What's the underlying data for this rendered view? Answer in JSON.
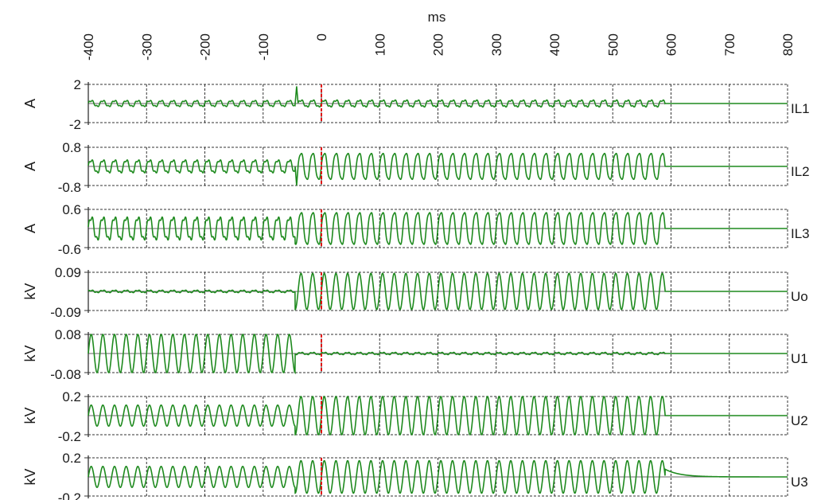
{
  "chart_data": {
    "type": "line",
    "xlabel": "ms",
    "xlim": [
      -400,
      800
    ],
    "xticks": [
      -400,
      -300,
      -200,
      -100,
      0,
      100,
      200,
      300,
      400,
      500,
      600,
      700,
      800
    ],
    "xtick_labels": [
      "-400",
      "-300",
      "-200",
      "-100",
      "0",
      "100",
      "200",
      "300",
      "400",
      "500",
      "600",
      "700",
      "800"
    ],
    "grid": true,
    "line_color": "#1e8a1e",
    "marker_color": "#e01010",
    "marker_x": 0,
    "frequency_hz": 50,
    "series": [
      {
        "name": "IL1",
        "unit": "A",
        "ylim": [
          -2,
          2
        ],
        "ytick_labels": [
          "2",
          "-2"
        ],
        "segments": [
          {
            "x": [
              -400,
              -45
            ],
            "amplitude": 0.35,
            "harmonic": 0.3
          },
          {
            "x": [
              -45,
              -40
            ],
            "spike": 1.8
          },
          {
            "x": [
              -40,
              590
            ],
            "amplitude": 0.4,
            "harmonic": 0.3
          },
          {
            "x": [
              590,
              800
            ],
            "amplitude": 0
          }
        ]
      },
      {
        "name": "IL2",
        "unit": "A",
        "ylim": [
          -0.8,
          0.8
        ],
        "ytick_labels": [
          "0.8",
          "-0.8"
        ],
        "segments": [
          {
            "x": [
              -400,
              -45
            ],
            "amplitude": 0.3,
            "harmonic": 0.25
          },
          {
            "x": [
              -45,
              -40
            ],
            "spike": -0.8
          },
          {
            "x": [
              -40,
              590
            ],
            "amplitude": 0.6,
            "harmonic": 0.1
          },
          {
            "x": [
              590,
              800
            ],
            "amplitude": 0
          }
        ]
      },
      {
        "name": "IL3",
        "unit": "A",
        "ylim": [
          -0.6,
          0.6
        ],
        "ytick_labels": [
          "0.6",
          "-0.6"
        ],
        "segments": [
          {
            "x": [
              -400,
              -45
            ],
            "amplitude": 0.4,
            "harmonic": 0.25
          },
          {
            "x": [
              -45,
              590
            ],
            "amplitude": 0.55,
            "harmonic": 0.1
          },
          {
            "x": [
              590,
              800
            ],
            "amplitude": 0
          }
        ]
      },
      {
        "name": "Uo",
        "unit": "kV",
        "ylim": [
          -0.09,
          0.09
        ],
        "ytick_labels": [
          "0.09",
          "-0.09"
        ],
        "segments": [
          {
            "x": [
              -400,
              -45
            ],
            "amplitude": 0.006,
            "harmonic": 0.5
          },
          {
            "x": [
              -45,
              590
            ],
            "amplitude": 0.085,
            "harmonic": 0
          },
          {
            "x": [
              590,
              800
            ],
            "amplitude": 0
          }
        ]
      },
      {
        "name": "U1",
        "unit": "kV",
        "ylim": [
          -0.08,
          0.08
        ],
        "ytick_labels": [
          "0.08",
          "-0.08"
        ],
        "segments": [
          {
            "x": [
              -400,
              -45
            ],
            "amplitude": 0.08,
            "harmonic": 0
          },
          {
            "x": [
              -45,
              590
            ],
            "amplitude": 0.005,
            "harmonic": 0.5
          },
          {
            "x": [
              590,
              800
            ],
            "amplitude": 0
          }
        ]
      },
      {
        "name": "U2",
        "unit": "kV",
        "ylim": [
          -0.2,
          0.2
        ],
        "ytick_labels": [
          "0.2",
          "-0.2"
        ],
        "segments": [
          {
            "x": [
              -400,
              -45
            ],
            "amplitude": 0.11,
            "harmonic": 0
          },
          {
            "x": [
              -45,
              590
            ],
            "amplitude": 0.2,
            "harmonic": 0
          },
          {
            "x": [
              590,
              800
            ],
            "amplitude": 0
          }
        ]
      },
      {
        "name": "U3",
        "unit": "kV",
        "ylim": [
          -0.2,
          0.2
        ],
        "ytick_labels": [
          "0.2",
          "-0.2"
        ],
        "segments": [
          {
            "x": [
              -400,
              -45
            ],
            "amplitude": 0.11,
            "harmonic": 0
          },
          {
            "x": [
              -45,
              590
            ],
            "amplitude": 0.17,
            "harmonic": 0
          },
          {
            "x": [
              590,
              800
            ],
            "amplitude": 0,
            "decay_from": 0.08
          }
        ]
      }
    ]
  }
}
